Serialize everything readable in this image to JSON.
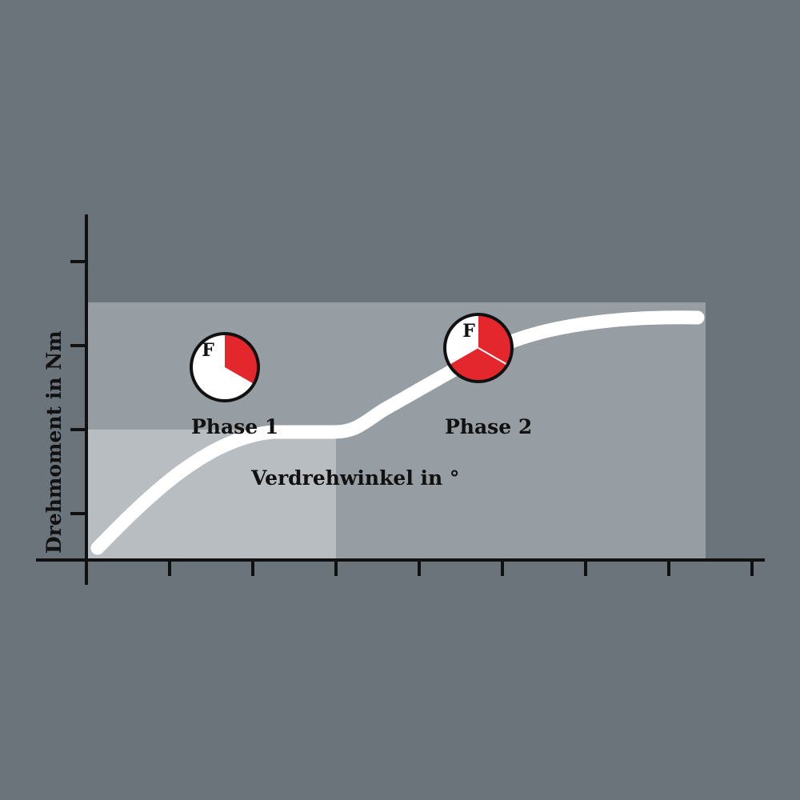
{
  "diagram": {
    "y_axis_label": "Drehmoment in Nm",
    "x_axis_label": "Verdrehwinkel in °",
    "phases": [
      {
        "label": "Phase 1",
        "icon_letter": "F",
        "red_fraction": 0.3333
      },
      {
        "label": "Phase 2",
        "icon_letter": "F",
        "red_fraction": 0.6667
      }
    ],
    "colors": {
      "background": "#6b737b",
      "phase_area": "#969ea4",
      "phase1_area": "#b8bdc1",
      "curve": "#ffffff",
      "pie_red": "#e4262d",
      "axis": "#111111"
    }
  }
}
